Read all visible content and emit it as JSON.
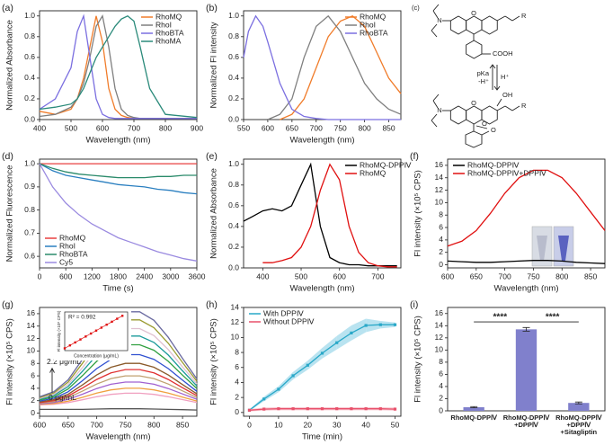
{
  "chart_data": [
    {
      "type": "line",
      "label": "(a)",
      "xlabel": "Wavelength (nm)",
      "ylabel": "Normalized Absorbance",
      "xlim": [
        400,
        900
      ],
      "xticks": [
        400,
        500,
        600,
        700,
        800,
        900
      ],
      "ylim": [
        0,
        1.05
      ],
      "yticks": [
        {
          "value": 0,
          "label": "0.0"
        },
        0.2,
        0.4,
        0.6,
        0.8,
        {
          "value": 1,
          "label": "1.0"
        }
      ],
      "legend": "upper right",
      "x": [
        400,
        450,
        500,
        520,
        540,
        560,
        580,
        600,
        620,
        640,
        660,
        680,
        700,
        720,
        750,
        800,
        900
      ],
      "series": [
        {
          "name": "RhoMQ",
          "color": "#f07c2a",
          "values": [
            0.08,
            0.05,
            0.1,
            0.2,
            0.4,
            0.7,
            1.0,
            0.75,
            0.3,
            0.1,
            0.04,
            0.02,
            0.01,
            0.01,
            0.01,
            0.01,
            0.01
          ]
        },
        {
          "name": "RhoI",
          "color": "#7f7f7f",
          "values": [
            0.03,
            0.05,
            0.12,
            0.2,
            0.35,
            0.6,
            0.9,
            1.0,
            0.7,
            0.3,
            0.1,
            0.04,
            0.02,
            0.01,
            0.01,
            0.01,
            0.01
          ]
        },
        {
          "name": "RhoBTA",
          "color": "#7b6fe0",
          "values": [
            0.1,
            0.2,
            0.5,
            0.85,
            1.0,
            0.6,
            0.2,
            0.05,
            0.02,
            0.01,
            0.01,
            0.01,
            0.01,
            0.01,
            0.01,
            0.01,
            0.01
          ]
        },
        {
          "name": "RhoMA",
          "color": "#2a8a7a",
          "values": [
            0.1,
            0.12,
            0.15,
            0.2,
            0.3,
            0.45,
            0.6,
            0.7,
            0.8,
            0.9,
            0.97,
            1.0,
            0.95,
            0.7,
            0.3,
            0.05,
            0.02
          ]
        }
      ]
    },
    {
      "type": "line",
      "label": "(b)",
      "xlabel": "Wavelength (nm)",
      "ylabel": "Normalized Fl intensity",
      "xlim": [
        550,
        875
      ],
      "xticks": [
        550,
        600,
        650,
        700,
        750,
        800,
        850
      ],
      "ylim": [
        0,
        1.05
      ],
      "yticks": [
        {
          "value": 0,
          "label": "0.0"
        },
        0.2,
        0.4,
        0.6,
        0.8,
        {
          "value": 1,
          "label": "1.0"
        }
      ],
      "legend": "upper right",
      "x": [
        550,
        560,
        575,
        590,
        600,
        625,
        650,
        675,
        700,
        725,
        750,
        775,
        800,
        825,
        850,
        875
      ],
      "series": [
        {
          "name": "RhoMQ",
          "color": "#f07c2a",
          "values": [
            null,
            null,
            null,
            null,
            null,
            0.0,
            0.05,
            0.2,
            0.5,
            0.8,
            0.95,
            1.0,
            0.9,
            0.65,
            0.4,
            0.25
          ]
        },
        {
          "name": "RhoI",
          "color": "#7f7f7f",
          "values": [
            null,
            null,
            null,
            null,
            0.0,
            0.05,
            0.2,
            0.6,
            0.9,
            1.0,
            0.85,
            0.6,
            0.35,
            0.2,
            0.1,
            0.05
          ]
        },
        {
          "name": "RhoBTA",
          "color": "#7b6fe0",
          "values": [
            0.6,
            0.85,
            1.0,
            0.9,
            0.75,
            0.35,
            0.1,
            0.03,
            0.01,
            0,
            0,
            0,
            0,
            0,
            0,
            0
          ]
        }
      ]
    },
    {
      "type": "line",
      "label": "(d)",
      "xlabel": "Time (s)",
      "ylabel": "Normalized Fluorescence",
      "xlim": [
        0,
        3600
      ],
      "xticks": [
        0,
        600,
        1200,
        1800,
        2400,
        3000,
        3600
      ],
      "ylim": [
        0.55,
        1.02
      ],
      "yticks": [
        0.6,
        0.7,
        0.8,
        0.9,
        {
          "value": 1,
          "label": "1.0"
        }
      ],
      "legend": "lower left",
      "x": [
        0,
        300,
        600,
        900,
        1200,
        1500,
        1800,
        2100,
        2400,
        2700,
        3000,
        3300,
        3600
      ],
      "series": [
        {
          "name": "RhoMQ",
          "color": "#e84040",
          "values": [
            1,
            1,
            1,
            1,
            1,
            1,
            1,
            1,
            1,
            1,
            1,
            1,
            1
          ]
        },
        {
          "name": "RhoI",
          "color": "#2a7fc0",
          "values": [
            1.0,
            0.97,
            0.95,
            0.94,
            0.93,
            0.92,
            0.91,
            0.905,
            0.9,
            0.89,
            0.885,
            0.875,
            0.87
          ]
        },
        {
          "name": "RhoBTA",
          "color": "#2a8a6a",
          "values": [
            1.0,
            0.98,
            0.965,
            0.955,
            0.95,
            0.945,
            0.94,
            0.94,
            0.94,
            0.945,
            0.945,
            0.95,
            0.95
          ]
        },
        {
          "name": "Cy5",
          "color": "#9a8ae0",
          "values": [
            1.0,
            0.9,
            0.83,
            0.78,
            0.74,
            0.71,
            0.68,
            0.66,
            0.64,
            0.62,
            0.605,
            0.59,
            0.58
          ]
        }
      ]
    },
    {
      "type": "line",
      "label": "(e)",
      "xlabel": "Wavelength (nm)",
      "ylabel": "Normalized Absorbance",
      "xlim": [
        350,
        760
      ],
      "xticks": [
        400,
        500,
        600,
        700
      ],
      "ylim": [
        0,
        1.05
      ],
      "yticks": [
        {
          "value": 0,
          "label": "0.0"
        },
        0.2,
        0.4,
        0.6,
        0.8,
        {
          "value": 1,
          "label": "1.0"
        }
      ],
      "legend": "upper right",
      "x": [
        350,
        375,
        400,
        425,
        450,
        475,
        500,
        525,
        550,
        575,
        600,
        625,
        650,
        675,
        700,
        725,
        750
      ],
      "series": [
        {
          "name": "RhoMQ-DPPⅣ",
          "color": "#000000",
          "values": [
            0.45,
            0.5,
            0.55,
            0.57,
            0.55,
            0.6,
            0.8,
            1.0,
            0.4,
            0.1,
            0.05,
            0.03,
            0.03,
            0.02,
            0.02,
            0.02,
            0.02
          ]
        },
        {
          "name": "RhoMQ",
          "color": "#e01010",
          "values": [
            null,
            null,
            0.05,
            0.05,
            0.07,
            0.1,
            0.2,
            0.4,
            0.75,
            1.0,
            0.85,
            0.4,
            0.15,
            0.05,
            0.02,
            0.01,
            0.01
          ]
        }
      ]
    },
    {
      "type": "line",
      "label": "(f)",
      "xlabel": "Wavelength (nm)",
      "ylabel": "Fl intensity (×10⁵ CPS)",
      "xlim": [
        600,
        875
      ],
      "xticks": [
        600,
        650,
        700,
        750,
        800,
        850
      ],
      "ylim": [
        -0.5,
        17
      ],
      "yticks": [
        0,
        2,
        4,
        6,
        8,
        10,
        12,
        14,
        16
      ],
      "legend": "upper left",
      "x": [
        600,
        625,
        650,
        675,
        700,
        725,
        750,
        775,
        800,
        825,
        850,
        875
      ],
      "series": [
        {
          "name": "RhoMQ-DPPⅣ",
          "color": "#000000",
          "values": [
            0.6,
            0.5,
            0.4,
            0.4,
            0.5,
            0.6,
            0.7,
            0.7,
            0.6,
            0.4,
            0.3,
            0.2
          ]
        },
        {
          "name": "RhoMQ-DPPⅣ+DPPⅣ",
          "color": "#e01010",
          "values": [
            3,
            3.8,
            5.5,
            8.3,
            11.5,
            14,
            15.2,
            15.2,
            14,
            11.5,
            8.5,
            5.5
          ]
        }
      ]
    },
    {
      "type": "line",
      "label": "(g)",
      "xlabel": "Wavelength (nm)",
      "ylabel": "Fl intensity (×10⁵ CPS)",
      "xlim": [
        600,
        875
      ],
      "xticks": [
        600,
        650,
        700,
        750,
        800,
        850
      ],
      "ylim": [
        -0.5,
        17
      ],
      "yticks": [
        0,
        2,
        4,
        6,
        8,
        10,
        12,
        14,
        16
      ],
      "annotations": [
        "2.2 μg/mL",
        "0 μg/mL"
      ],
      "x": [
        600,
        625,
        650,
        675,
        700,
        725,
        750,
        775,
        800,
        825,
        850,
        875
      ],
      "series": [
        {
          "color": "#555555",
          "values": [
            0.6,
            0.6,
            0.6,
            0.6,
            0.65,
            0.7,
            0.7,
            0.7,
            0.65,
            0.6,
            0.55,
            0.5
          ]
        },
        {
          "color": "#f0a0c0",
          "values": [
            1.32,
            1.43,
            1.7,
            2.15,
            2.64,
            3.01,
            3.2,
            3.2,
            3.01,
            2.64,
            2.17,
            1.71
          ]
        },
        {
          "color": "#f0a040",
          "values": [
            1.4,
            1.56,
            1.92,
            2.54,
            3.22,
            3.74,
            4,
            4,
            3.74,
            3.22,
            2.57,
            1.95
          ]
        },
        {
          "color": "#a060d0",
          "values": [
            1.5,
            1.71,
            2.2,
            3.04,
            3.95,
            4.65,
            5,
            5,
            4.65,
            3.95,
            3.08,
            2.24
          ]
        },
        {
          "color": "#c0a070",
          "values": [
            1.6,
            1.86,
            2.48,
            3.54,
            4.68,
            5.56,
            6,
            6,
            5.56,
            4.68,
            3.58,
            2.52
          ]
        },
        {
          "color": "#e03030",
          "values": [
            1.7,
            2.02,
            2.76,
            4.03,
            5.41,
            6.47,
            7,
            7,
            6.47,
            5.41,
            4.09,
            2.81
          ]
        },
        {
          "color": "#8a5a2a",
          "values": [
            1.8,
            2.17,
            3.04,
            4.53,
            6.14,
            7.38,
            8,
            8,
            7.38,
            6.14,
            4.59,
            3.1
          ]
        },
        {
          "color": "#3050d0",
          "values": [
            1.94,
            2.39,
            3.43,
            5.22,
            7.16,
            8.65,
            9.4,
            9.4,
            8.65,
            7.16,
            5.3,
            3.51
          ]
        },
        {
          "color": "#30a040",
          "values": [
            2.1,
            2.63,
            3.88,
            6.02,
            8.33,
            10.11,
            11,
            11,
            10.11,
            8.33,
            6.11,
            3.97
          ]
        },
        {
          "color": "#1a9a9a",
          "values": [
            2.24,
            2.85,
            4.27,
            6.71,
            9.35,
            11.38,
            12.4,
            12.4,
            11.38,
            9.35,
            6.81,
            4.37
          ]
        },
        {
          "color": "#e0c0d0",
          "values": [
            2.36,
            3.03,
            4.61,
            7.31,
            10.23,
            12.48,
            13.6,
            13.6,
            12.48,
            10.23,
            7.42,
            4.72
          ]
        },
        {
          "color": "#9a9a30",
          "values": [
            2.5,
            3.25,
            5,
            8,
            11.25,
            13.75,
            15,
            15,
            13.75,
            11.25,
            8.13,
            5.13
          ]
        },
        {
          "color": "#6a6aa0",
          "values": [
            2.63,
            3.45,
            5.36,
            8.64,
            12.2,
            14.93,
            16.3,
            16.3,
            14.93,
            12.2,
            8.78,
            5.5
          ]
        }
      ],
      "inset": {
        "type": "scatter",
        "annotation": "R² = 0.992",
        "xlabel": "Concentration (μg/mL)",
        "ylabel": "Fl intensity (×10⁵ CPS)",
        "xlim": [
          0,
          2.4
        ],
        "ylim": [
          0,
          17
        ],
        "color": "#e01010",
        "x": [
          0,
          0.2,
          0.4,
          0.6,
          0.8,
          1.0,
          1.2,
          1.4,
          1.6,
          1.8,
          2.0,
          2.2
        ],
        "values": [
          1,
          2.3,
          3.6,
          4.9,
          6.2,
          7.5,
          8.8,
          10.1,
          11.4,
          12.7,
          14,
          15.3
        ]
      }
    },
    {
      "type": "line",
      "label": "(h)",
      "xlabel": "Time (min)",
      "ylabel": "Fl intensity (×10⁵ CPS)",
      "xlim": [
        -2,
        52
      ],
      "xticks": [
        0,
        10,
        20,
        30,
        40,
        50
      ],
      "ylim": [
        -0.5,
        14
      ],
      "yticks": [
        0,
        2,
        4,
        6,
        8,
        10,
        12,
        14
      ],
      "legend": "upper left",
      "markers": true,
      "x": [
        0,
        5,
        10,
        15,
        20,
        25,
        30,
        35,
        40,
        45,
        50
      ],
      "series": [
        {
          "name": "With DPPⅣ",
          "color": "#29a8c8",
          "band": "#a8dcec",
          "values": [
            0.3,
            1.8,
            3.1,
            4.9,
            6.3,
            7.9,
            9.3,
            10.6,
            11.6,
            11.7,
            11.7
          ],
          "errors": [
            0.1,
            0.3,
            0.4,
            0.5,
            0.6,
            0.7,
            0.9,
            1.0,
            0.9,
            0.5,
            0.3
          ]
        },
        {
          "name": "Without DPPⅣ",
          "color": "#e8506a",
          "band": "#f6b8c4",
          "values": [
            0.3,
            0.45,
            0.5,
            0.5,
            0.5,
            0.5,
            0.5,
            0.5,
            0.5,
            0.5,
            0.45
          ],
          "errors": [
            0.15,
            0.2,
            0.2,
            0.2,
            0.2,
            0.2,
            0.2,
            0.2,
            0.2,
            0.2,
            0.2
          ]
        }
      ]
    },
    {
      "type": "bar",
      "label": "(i)",
      "ylabel": "Fl intensity (×10⁵ CPS)",
      "ylim": [
        0,
        17
      ],
      "yticks": [
        0,
        2,
        4,
        6,
        8,
        10,
        12,
        14,
        16
      ],
      "color": "#8080cc",
      "categories": [
        [
          "RhoMQ-DPPⅣ"
        ],
        [
          "RhoMQ-DPPⅣ",
          "+DPPⅣ"
        ],
        [
          "RhoMQ-DPPⅣ",
          "+DPPⅣ",
          "+Sitagliptin"
        ]
      ],
      "values": [
        0.6,
        13.4,
        1.3
      ],
      "errors": [
        0.1,
        0.3,
        0.15
      ],
      "annotations": [
        "****",
        "****"
      ]
    }
  ],
  "diagram": {
    "label": "(c)",
    "top": [
      "N",
      "O",
      "COOH",
      "R"
    ],
    "arrow": [
      "pKa",
      "-H⁺",
      "H⁺"
    ],
    "bottom": [
      "N",
      "O",
      "OH",
      "R",
      "O",
      "O"
    ]
  }
}
